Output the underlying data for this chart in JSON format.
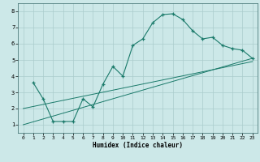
{
  "xlabel": "Humidex (Indice chaleur)",
  "bg_color": "#cce8e8",
  "line_color": "#1a7a6a",
  "grid_color": "#aacccc",
  "xlim": [
    -0.5,
    23.5
  ],
  "ylim": [
    0.5,
    8.5
  ],
  "xticks": [
    0,
    1,
    2,
    3,
    4,
    5,
    6,
    7,
    8,
    9,
    10,
    11,
    12,
    13,
    14,
    15,
    16,
    17,
    18,
    19,
    20,
    21,
    22,
    23
  ],
  "yticks": [
    1,
    2,
    3,
    4,
    5,
    6,
    7,
    8
  ],
  "line1_x": [
    1,
    2,
    3,
    4,
    5,
    6,
    7,
    8,
    9,
    10,
    11,
    12,
    13,
    14,
    15,
    16,
    17,
    18,
    19,
    20,
    21,
    22,
    23
  ],
  "line1_y": [
    3.6,
    2.6,
    1.2,
    1.2,
    1.2,
    2.6,
    2.1,
    3.5,
    4.6,
    4.0,
    5.9,
    6.3,
    7.3,
    7.8,
    7.85,
    7.5,
    6.8,
    6.3,
    6.4,
    5.9,
    5.7,
    5.6,
    5.1
  ],
  "line2_x": [
    0,
    23
  ],
  "line2_y": [
    1.0,
    5.1
  ],
  "line3_x": [
    0,
    23
  ],
  "line3_y": [
    2.0,
    4.9
  ]
}
